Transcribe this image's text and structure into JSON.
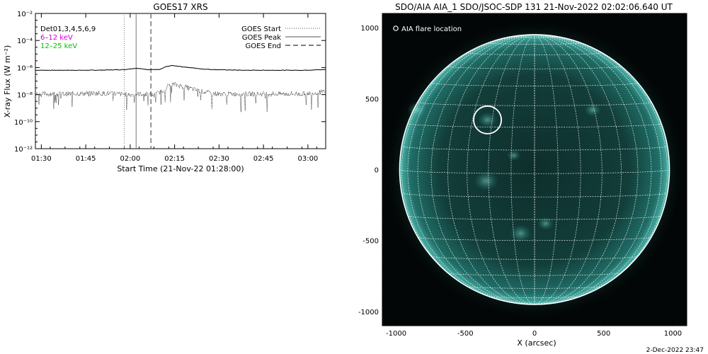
{
  "left_panel": {
    "title": "GOES17 XRS",
    "legend_left": {
      "bands": [
        "Det01,3,4,5,6,9",
        "6–12 keV",
        "12–25 keV"
      ],
      "colors": [
        "#000000",
        "#d000d0",
        "#00c000"
      ]
    },
    "legend_right": [
      "GOES Start",
      "GOES Peak",
      "GOES End"
    ]
  },
  "right_panel": {
    "title": "SDO/AIA AIA_1 SDO/JSOC-SDP 131 21-Nov-2022 02:02:06.640 UT",
    "flare_legend": "AIA flare location",
    "footer_date": "2-Dec-2022 23:47"
  },
  "chart_data": [
    {
      "type": "line",
      "title": "GOES17 XRS",
      "xlabel": "Start Time (21-Nov-22 01:28:00)",
      "ylabel": "X-ray Flux (W m⁻²)",
      "x_unit": "minutes after 01:28:00",
      "xlim": [
        0,
        98
      ],
      "ylim_log10": [
        -12,
        -2
      ],
      "yscale": "log",
      "x_ticks": [
        2,
        17,
        32,
        47,
        62,
        77,
        92
      ],
      "x_tick_labels": [
        "01:30",
        "01:45",
        "02:00",
        "02:15",
        "02:30",
        "02:45",
        "03:00"
      ],
      "y_ticks_log10": [
        -12,
        -10,
        -8,
        -6,
        -4,
        -2
      ],
      "y_tick_labels": [
        "10⁻¹²",
        "10⁻¹⁰",
        "10⁻⁸",
        "10⁻⁶",
        "10⁻⁴",
        "10⁻²"
      ],
      "vertical_markers": [
        {
          "name": "GOES Start",
          "x": 30,
          "style": "dotted"
        },
        {
          "name": "GOES Peak",
          "x": 34,
          "style": "solid"
        },
        {
          "name": "GOES End",
          "x": 39,
          "style": "dashed"
        }
      ],
      "series": [
        {
          "name": "GOES long channel (upper trace)",
          "x": [
            0,
            10,
            20,
            30,
            34,
            38,
            42,
            44,
            46,
            48,
            52,
            56,
            60,
            70,
            80,
            90,
            98
          ],
          "log10_flux": [
            -6.2,
            -6.2,
            -6.2,
            -6.15,
            -6.05,
            -6.15,
            -6.15,
            -5.95,
            -5.85,
            -5.9,
            -6.0,
            -6.1,
            -6.15,
            -6.2,
            -6.2,
            -6.2,
            -6.15
          ]
        },
        {
          "name": "GOES short channel (lower trace)",
          "x": [
            0,
            10,
            20,
            28,
            32,
            36,
            40,
            43,
            45,
            47,
            50,
            54,
            58,
            62,
            70,
            80,
            90,
            98
          ],
          "log10_flux": [
            -7.95,
            -7.95,
            -7.9,
            -7.95,
            -8.0,
            -7.95,
            -8.05,
            -7.7,
            -7.3,
            -7.25,
            -7.4,
            -7.65,
            -7.85,
            -7.95,
            -7.95,
            -7.95,
            -7.95,
            -7.8
          ]
        }
      ]
    },
    {
      "type": "scatter",
      "title": "SDO/AIA AIA_1 SDO/JSOC-SDP 131 21-Nov-2022 02:02:06.640 UT",
      "xlabel": "X (arcsec)",
      "ylabel": "",
      "xlim": [
        -1100,
        1100
      ],
      "ylim": [
        -1100,
        1100
      ],
      "x_ticks": [
        -1000,
        -500,
        0,
        500,
        1000
      ],
      "y_ticks": [
        -1000,
        -500,
        0,
        500,
        1000
      ],
      "solar_radius_arcsec": 975,
      "grid_spacing_deg": 10,
      "flare_location": {
        "x": -340,
        "y": 350,
        "radius": 100
      }
    }
  ]
}
